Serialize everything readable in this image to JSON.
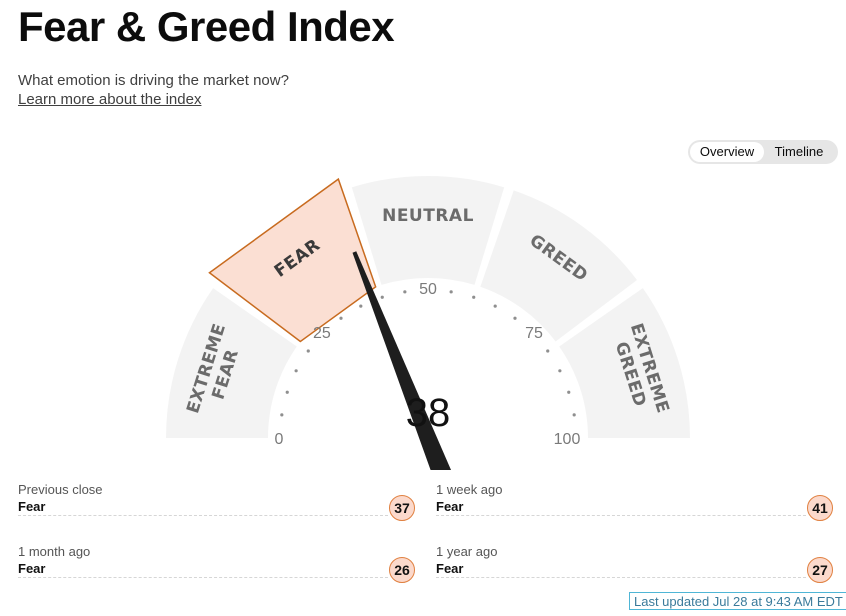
{
  "header": {
    "title": "Fear & Greed Index",
    "subtitle": "What emotion is driving the market now?",
    "learn_link": "Learn more about the index"
  },
  "view_toggle": {
    "options": [
      "Overview",
      "Timeline"
    ],
    "selected": "Overview"
  },
  "gauge": {
    "score": "38",
    "value": 38,
    "segments": [
      {
        "label_lines": [
          "EXTREME",
          "FEAR"
        ],
        "active": false
      },
      {
        "label_lines": [
          "FEAR"
        ],
        "active": true
      },
      {
        "label_lines": [
          "NEUTRAL"
        ],
        "active": false
      },
      {
        "label_lines": [
          "GREED"
        ],
        "active": false
      },
      {
        "label_lines": [
          "EXTREME",
          "GREED"
        ],
        "active": false
      }
    ],
    "tick_labels": [
      {
        "value": 0,
        "text": "0"
      },
      {
        "value": 25,
        "text": "25"
      },
      {
        "value": 50,
        "text": "50"
      },
      {
        "value": 75,
        "text": "75"
      },
      {
        "value": 100,
        "text": "100"
      }
    ],
    "colors": {
      "active_fill": "#fbdfd3",
      "active_stroke": "#c86b1f",
      "inactive_fill": "#f3f3f3",
      "needle": "#1e1e1e",
      "dots": "#8f8f8f"
    }
  },
  "history": [
    {
      "label": "Previous close",
      "rating": "Fear",
      "value": "37"
    },
    {
      "label": "1 week ago",
      "rating": "Fear",
      "value": "41"
    },
    {
      "label": "1 month ago",
      "rating": "Fear",
      "value": "26"
    },
    {
      "label": "1 year ago",
      "rating": "Fear",
      "value": "27"
    }
  ],
  "last_updated": "Last updated Jul 28 at 9:43 AM EDT"
}
